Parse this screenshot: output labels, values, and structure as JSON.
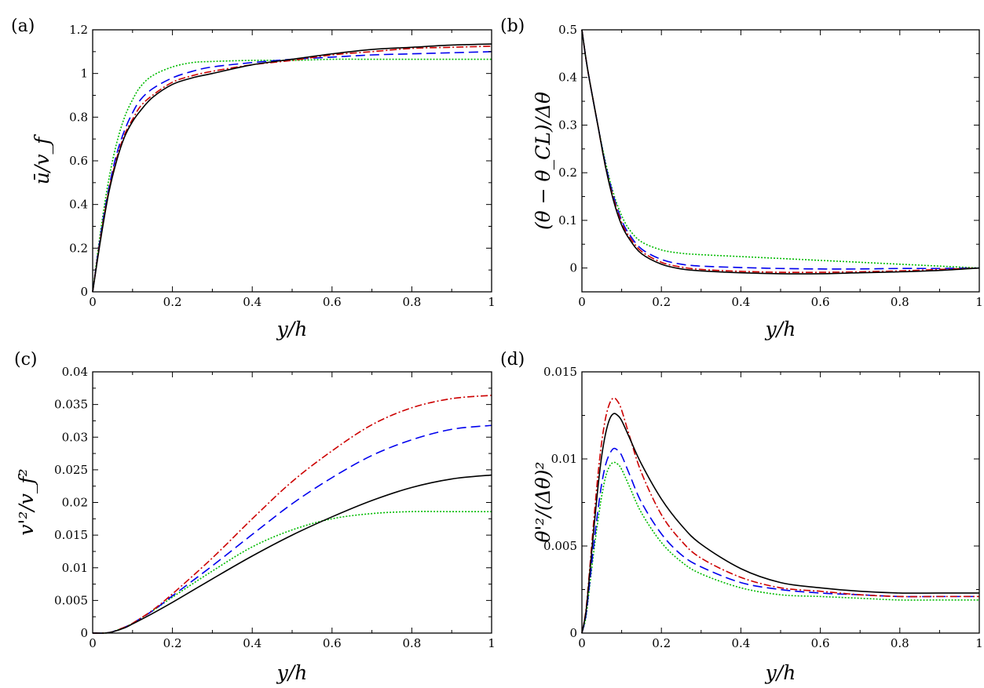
{
  "figure": {
    "series_styles": [
      {
        "name": "solid-black",
        "color": "#000000",
        "dash": ""
      },
      {
        "name": "dashdot-red",
        "color": "#cc0000",
        "dash": "9,3,2,3"
      },
      {
        "name": "dashed-blue",
        "color": "#0000ee",
        "dash": "12,6"
      },
      {
        "name": "dotted-green",
        "color": "#00bb00",
        "dash": "2,2"
      }
    ]
  },
  "chart_data": [
    {
      "id": "a",
      "panel_label": "(a)",
      "type": "line",
      "xlabel": "y/h",
      "ylabel": "ū/v_f",
      "xlim": [
        0,
        1
      ],
      "ylim": [
        0,
        1.2
      ],
      "xticks": [
        0,
        0.2,
        0.4,
        0.6,
        0.8,
        1
      ],
      "xtick_labels": [
        "0",
        "0.2",
        "0.4",
        "0.6",
        "0.8",
        "1"
      ],
      "yticks": [
        0,
        0.2,
        0.4,
        0.6,
        0.8,
        1,
        1.2
      ],
      "ytick_labels": [
        "0",
        "0.2",
        "0.4",
        "0.6",
        "0.8",
        "1",
        "1.2"
      ],
      "x": [
        0,
        0.02,
        0.04,
        0.06,
        0.08,
        0.1,
        0.12,
        0.15,
        0.2,
        0.25,
        0.3,
        0.4,
        0.5,
        0.6,
        0.7,
        0.8,
        0.9,
        1.0
      ],
      "series": [
        {
          "name": "solid-black",
          "values": [
            0,
            0.24,
            0.45,
            0.6,
            0.71,
            0.78,
            0.83,
            0.89,
            0.95,
            0.98,
            1.0,
            1.04,
            1.065,
            1.09,
            1.11,
            1.12,
            1.13,
            1.135
          ]
        },
        {
          "name": "dashdot-red",
          "values": [
            0,
            0.25,
            0.46,
            0.61,
            0.72,
            0.79,
            0.85,
            0.9,
            0.96,
            0.99,
            1.01,
            1.04,
            1.06,
            1.085,
            1.1,
            1.115,
            1.12,
            1.125
          ]
        },
        {
          "name": "dashed-blue",
          "values": [
            0,
            0.26,
            0.47,
            0.63,
            0.74,
            0.82,
            0.88,
            0.93,
            0.98,
            1.01,
            1.03,
            1.05,
            1.065,
            1.075,
            1.085,
            1.09,
            1.095,
            1.1
          ]
        },
        {
          "name": "dotted-green",
          "values": [
            0,
            0.28,
            0.51,
            0.68,
            0.8,
            0.88,
            0.94,
            0.99,
            1.03,
            1.05,
            1.055,
            1.06,
            1.06,
            1.065,
            1.065,
            1.065,
            1.065,
            1.065
          ]
        }
      ]
    },
    {
      "id": "b",
      "panel_label": "(b)",
      "type": "line",
      "xlabel": "y/h",
      "ylabel": "(θ − θ_CL)/Δθ",
      "xlim": [
        0,
        1
      ],
      "ylim": [
        -0.05,
        0.5
      ],
      "xticks": [
        0,
        0.2,
        0.4,
        0.6,
        0.8,
        1
      ],
      "xtick_labels": [
        "0",
        "0.2",
        "0.4",
        "0.6",
        "0.8",
        "1"
      ],
      "yticks": [
        0,
        0.1,
        0.2,
        0.3,
        0.4,
        0.5
      ],
      "ytick_labels": [
        "0",
        "0.1",
        "0.2",
        "0.3",
        "0.4",
        "0.5"
      ],
      "x": [
        0,
        0.01,
        0.02,
        0.04,
        0.06,
        0.08,
        0.1,
        0.12,
        0.15,
        0.2,
        0.25,
        0.3,
        0.4,
        0.5,
        0.6,
        0.7,
        0.8,
        0.9,
        1.0
      ],
      "series": [
        {
          "name": "solid-black",
          "values": [
            0.5,
            0.44,
            0.39,
            0.3,
            0.21,
            0.14,
            0.09,
            0.06,
            0.03,
            0.008,
            -0.002,
            -0.006,
            -0.01,
            -0.012,
            -0.012,
            -0.01,
            -0.008,
            -0.005,
            0
          ]
        },
        {
          "name": "dashdot-red",
          "values": [
            0.5,
            0.44,
            0.39,
            0.3,
            0.21,
            0.145,
            0.095,
            0.065,
            0.035,
            0.012,
            0.002,
            -0.003,
            -0.007,
            -0.009,
            -0.009,
            -0.008,
            -0.006,
            -0.003,
            0
          ]
        },
        {
          "name": "dashed-blue",
          "values": [
            0.5,
            0.44,
            0.39,
            0.3,
            0.215,
            0.15,
            0.1,
            0.07,
            0.04,
            0.018,
            0.008,
            0.004,
            0.001,
            -0.001,
            -0.002,
            -0.002,
            -0.001,
            -0.001,
            0
          ]
        },
        {
          "name": "dotted-green",
          "values": [
            0.5,
            0.44,
            0.39,
            0.3,
            0.22,
            0.155,
            0.11,
            0.08,
            0.055,
            0.038,
            0.031,
            0.028,
            0.024,
            0.02,
            0.016,
            0.012,
            0.008,
            0.004,
            0
          ]
        }
      ]
    },
    {
      "id": "c",
      "panel_label": "(c)",
      "type": "line",
      "xlabel": "y/h",
      "ylabel": "v'²/v_f²",
      "xlim": [
        0,
        1
      ],
      "ylim": [
        0,
        0.04
      ],
      "xticks": [
        0,
        0.2,
        0.4,
        0.6,
        0.8,
        1
      ],
      "xtick_labels": [
        "0",
        "0.2",
        "0.4",
        "0.6",
        "0.8",
        "1"
      ],
      "yticks": [
        0,
        0.005,
        0.01,
        0.015,
        0.02,
        0.025,
        0.03,
        0.035,
        0.04
      ],
      "ytick_labels": [
        "0",
        "0.005",
        "0.01",
        "0.015",
        "0.02",
        "0.025",
        "0.03",
        "0.035",
        "0.04"
      ],
      "x": [
        0,
        0.03,
        0.05,
        0.08,
        0.1,
        0.15,
        0.2,
        0.3,
        0.4,
        0.5,
        0.6,
        0.7,
        0.8,
        0.9,
        1.0
      ],
      "series": [
        {
          "name": "solid-black",
          "values": [
            0,
            0,
            0.0002,
            0.0008,
            0.0014,
            0.003,
            0.0047,
            0.0083,
            0.0118,
            0.015,
            0.0178,
            0.0203,
            0.0223,
            0.0236,
            0.0242
          ]
        },
        {
          "name": "dashdot-red",
          "values": [
            0,
            0,
            0.0002,
            0.0009,
            0.0015,
            0.0035,
            0.006,
            0.0115,
            0.0175,
            0.0232,
            0.0279,
            0.0319,
            0.0345,
            0.0359,
            0.0364
          ]
        },
        {
          "name": "dashed-blue",
          "values": [
            0,
            0,
            0.0002,
            0.0009,
            0.0015,
            0.0034,
            0.0057,
            0.0103,
            0.0151,
            0.0198,
            0.0238,
            0.0272,
            0.0296,
            0.0312,
            0.0318
          ]
        },
        {
          "name": "dotted-green",
          "values": [
            0,
            0,
            0.0002,
            0.0009,
            0.0015,
            0.0034,
            0.0055,
            0.0095,
            0.0132,
            0.0158,
            0.0175,
            0.0183,
            0.0186,
            0.0186,
            0.0186
          ]
        }
      ]
    },
    {
      "id": "d",
      "panel_label": "(d)",
      "type": "line",
      "xlabel": "y/h",
      "ylabel": "θ'²/(Δθ)²",
      "xlim": [
        0,
        1
      ],
      "ylim": [
        0,
        0.015
      ],
      "xticks": [
        0,
        0.2,
        0.4,
        0.6,
        0.8,
        1
      ],
      "xtick_labels": [
        "0",
        "0.2",
        "0.4",
        "0.6",
        "0.8",
        "1"
      ],
      "yticks": [
        0,
        0.005,
        0.01,
        0.015
      ],
      "ytick_labels": [
        "0",
        "0.005",
        "0.01",
        "0.015"
      ],
      "x": [
        0,
        0.01,
        0.02,
        0.03,
        0.04,
        0.05,
        0.06,
        0.07,
        0.08,
        0.09,
        0.1,
        0.12,
        0.15,
        0.2,
        0.25,
        0.3,
        0.4,
        0.5,
        0.6,
        0.7,
        0.8,
        0.9,
        1.0
      ],
      "series": [
        {
          "name": "solid-black",
          "values": [
            0,
            0.0012,
            0.0035,
            0.006,
            0.0083,
            0.0102,
            0.0115,
            0.0123,
            0.0126,
            0.0125,
            0.0122,
            0.0112,
            0.0097,
            0.0077,
            0.0062,
            0.0051,
            0.0037,
            0.0029,
            0.0026,
            0.0024,
            0.0023,
            0.0023,
            0.0023
          ]
        },
        {
          "name": "dashdot-red",
          "values": [
            0,
            0.0013,
            0.0038,
            0.0065,
            0.009,
            0.011,
            0.0124,
            0.0132,
            0.0135,
            0.0133,
            0.0128,
            0.0113,
            0.0092,
            0.0068,
            0.0053,
            0.0043,
            0.0032,
            0.0026,
            0.0024,
            0.0022,
            0.0021,
            0.0021,
            0.0021
          ]
        },
        {
          "name": "dashed-blue",
          "values": [
            0,
            0.001,
            0.003,
            0.0051,
            0.007,
            0.0086,
            0.0097,
            0.0103,
            0.0106,
            0.0105,
            0.0102,
            0.0091,
            0.0075,
            0.0057,
            0.0045,
            0.0038,
            0.0029,
            0.0025,
            0.0023,
            0.0022,
            0.0021,
            0.0021,
            0.0021
          ]
        },
        {
          "name": "dotted-green",
          "values": [
            0,
            0.0009,
            0.0028,
            0.0047,
            0.0064,
            0.0079,
            0.009,
            0.0096,
            0.0098,
            0.0097,
            0.0094,
            0.0084,
            0.0069,
            0.0052,
            0.0041,
            0.0034,
            0.0026,
            0.0022,
            0.0021,
            0.002,
            0.0019,
            0.0019,
            0.0019
          ]
        }
      ]
    }
  ]
}
